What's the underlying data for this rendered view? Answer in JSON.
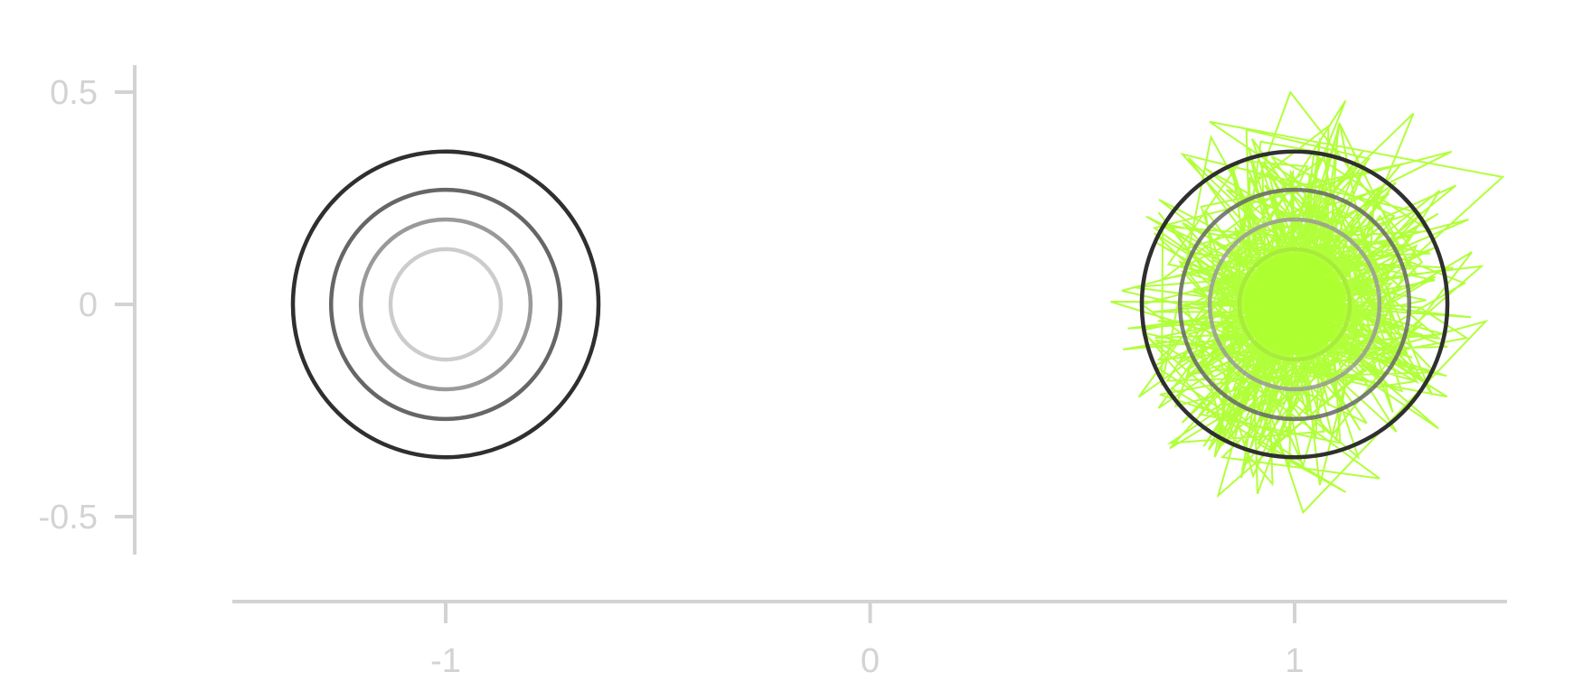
{
  "chart_data": {
    "type": "line",
    "title": "",
    "xlabel": "",
    "ylabel": "",
    "xlim": [
      -1.5,
      1.5
    ],
    "ylim": [
      -0.6,
      0.6
    ],
    "x_ticks": [
      -1,
      0,
      1
    ],
    "x_tick_labels": [
      "-1",
      "0",
      "1"
    ],
    "y_ticks": [
      0.5,
      0,
      -0.5
    ],
    "y_tick_labels": [
      "0.5",
      "0",
      "-0.5"
    ],
    "grid": false,
    "legend": "none",
    "colors": {
      "axis": "#d3d3d3",
      "tick_label": "#d3d3d3",
      "sample_path": "#adff2f",
      "contour_levels": [
        "#2f2f2f",
        "#666666",
        "#999999",
        "#cccccc"
      ],
      "fitted_contour_levels": [
        "#2f2f2f",
        "#666666",
        "#999999",
        "#a6e83c"
      ]
    },
    "series": [
      {
        "kind": "contours",
        "center": [
          -1,
          0
        ],
        "radii": [
          0.36,
          0.27,
          0.2,
          0.13
        ]
      },
      {
        "kind": "contours",
        "center": [
          1,
          0
        ],
        "radii": [
          0.36,
          0.27,
          0.2,
          0.13
        ]
      },
      {
        "kind": "sample-path",
        "center": [
          1,
          0
        ],
        "extent": [
          0.55,
          0.52
        ],
        "points": [
          [
            0.91,
            0.29
          ],
          [
            1.08,
            0.42
          ],
          [
            1.05,
            -0.31
          ],
          [
            0.73,
            0.1
          ],
          [
            1.35,
            -0.07
          ],
          [
            0.68,
            -0.13
          ],
          [
            1.28,
            0.45
          ],
          [
            0.95,
            -0.35
          ],
          [
            1.14,
            0.2
          ],
          [
            0.8,
            0.43
          ],
          [
            1.49,
            0.3
          ],
          [
            0.86,
            -0.27
          ],
          [
            1.06,
            0.05
          ],
          [
            1.41,
            0.2
          ],
          [
            0.64,
            0.0
          ],
          [
            1.2,
            -0.41
          ],
          [
            0.83,
            -0.36
          ],
          [
            1.3,
            0.1
          ],
          [
            0.99,
            0.5
          ],
          [
            0.72,
            -0.24
          ],
          [
            1.45,
            -0.04
          ],
          [
            1.02,
            -0.49
          ],
          [
            0.78,
            0.23
          ],
          [
            1.25,
            0.33
          ],
          [
            0.93,
            -0.06
          ],
          [
            1.1,
            -0.12
          ],
          [
            0.67,
            0.18
          ],
          [
            1.37,
            0.36
          ],
          [
            0.89,
            0.12
          ],
          [
            1.17,
            -0.28
          ],
          [
            0.75,
            -0.07
          ],
          [
            1.22,
            0.06
          ],
          [
            1.04,
            0.31
          ],
          [
            0.82,
            -0.45
          ],
          [
            1.44,
            0.09
          ],
          [
            0.94,
            0.03
          ],
          [
            1.12,
            0.48
          ],
          [
            0.7,
            -0.18
          ],
          [
            1.33,
            -0.16
          ],
          [
            0.98,
            0.21
          ],
          [
            1.19,
            -0.05
          ],
          [
            0.84,
            0.27
          ],
          [
            1.4,
            0.05
          ],
          [
            0.95,
            -0.21
          ],
          [
            1.08,
            0.14
          ],
          [
            0.76,
            0.03
          ],
          [
            1.26,
            -0.12
          ],
          [
            0.9,
            0.39
          ],
          [
            1.15,
            -0.36
          ],
          [
            0.73,
            -0.01
          ],
          [
            1.38,
            0.28
          ],
          [
            1.01,
            -0.02
          ],
          [
            0.86,
            0.17
          ],
          [
            1.23,
            -0.2
          ],
          [
            0.96,
            0.08
          ],
          [
            1.31,
            0.01
          ],
          [
            0.81,
            -0.09
          ],
          [
            1.13,
            0.25
          ],
          [
            0.92,
            -0.14
          ],
          [
            1.06,
            0.34
          ],
          [
            0.69,
            0.06
          ],
          [
            1.27,
            0.16
          ],
          [
            0.98,
            -0.27
          ],
          [
            1.18,
            0.1
          ],
          [
            0.88,
            -0.03
          ],
          [
            1.34,
            -0.08
          ],
          [
            1.03,
            0.18
          ],
          [
            0.79,
            0.32
          ],
          [
            1.21,
            -0.02
          ],
          [
            0.94,
            0.26
          ],
          [
            1.1,
            -0.22
          ],
          [
            0.85,
            0.07
          ],
          [
            1.29,
            0.22
          ],
          [
            1.0,
            -0.09
          ],
          [
            0.77,
            -0.16
          ],
          [
            1.16,
            0.36
          ],
          [
            0.91,
            0.0
          ],
          [
            1.24,
            -0.3
          ],
          [
            0.97,
            0.13
          ],
          [
            1.05,
            -0.17
          ],
          [
            0.83,
            0.1
          ],
          [
            1.32,
            0.12
          ],
          [
            0.95,
            0.19
          ],
          [
            1.11,
            0.02
          ],
          [
            0.74,
            0.13
          ],
          [
            1.2,
            0.27
          ],
          [
            1.02,
            -0.38
          ],
          [
            0.9,
            -0.11
          ],
          [
            1.36,
            -0.1
          ],
          [
            0.99,
            0.04
          ],
          [
            1.07,
            0.22
          ],
          [
            0.87,
            -0.19
          ],
          [
            1.25,
            0.04
          ],
          [
            0.93,
            0.33
          ],
          [
            1.14,
            -0.08
          ],
          [
            0.8,
            -0.02
          ],
          [
            1.28,
            -0.15
          ],
          [
            1.01,
            0.09
          ],
          [
            0.96,
            -0.05
          ],
          [
            1.09,
            0.16
          ]
        ]
      }
    ]
  }
}
